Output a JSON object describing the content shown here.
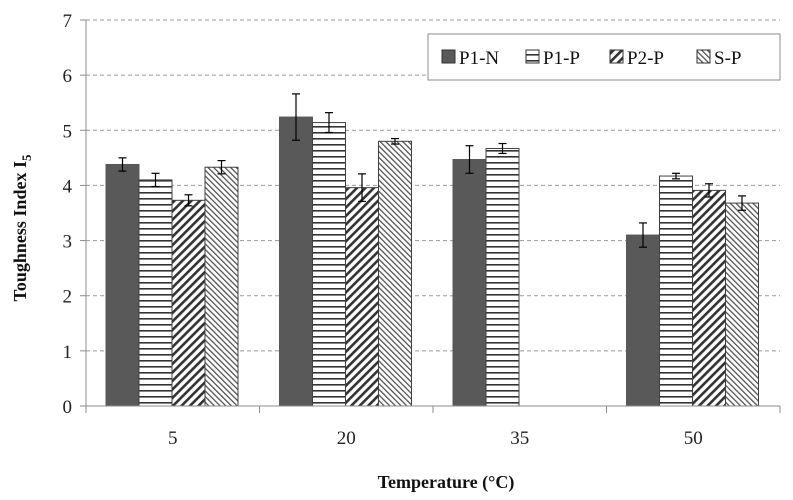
{
  "chart_data": {
    "type": "bar",
    "categories": [
      "5",
      "20",
      "35",
      "50"
    ],
    "xlabel": "Temperature (°C)",
    "ylabel": {
      "main": "Toughness Index I",
      "sub": "5"
    },
    "ylim": [
      0,
      7
    ],
    "yticks": [
      "0",
      "1",
      "2",
      "3",
      "4",
      "5",
      "6",
      "7"
    ],
    "grid": "horizontal-dashed",
    "legend_position": "top-right",
    "series": [
      {
        "name": "P1-N",
        "pattern": "solid",
        "color": "#595959",
        "values": [
          4.38,
          5.24,
          4.47,
          3.1
        ],
        "errors": [
          0.12,
          0.42,
          0.25,
          0.22
        ]
      },
      {
        "name": "P1-P",
        "pattern": "horizontal-lines",
        "color": "#404040",
        "values": [
          4.1,
          5.14,
          4.67,
          4.17
        ],
        "errors": [
          0.12,
          0.18,
          0.09,
          0.05
        ]
      },
      {
        "name": "P2-P",
        "pattern": "diagonal-hatch",
        "color": "#404040",
        "values": [
          3.73,
          3.96,
          null,
          3.91
        ],
        "errors": [
          0.1,
          0.25,
          null,
          0.12
        ]
      },
      {
        "name": "S-P",
        "pattern": "fine-diagonal",
        "color": "#404040",
        "values": [
          4.33,
          4.8,
          null,
          3.68
        ],
        "errors": [
          0.12,
          0.05,
          null,
          0.13
        ]
      }
    ]
  }
}
